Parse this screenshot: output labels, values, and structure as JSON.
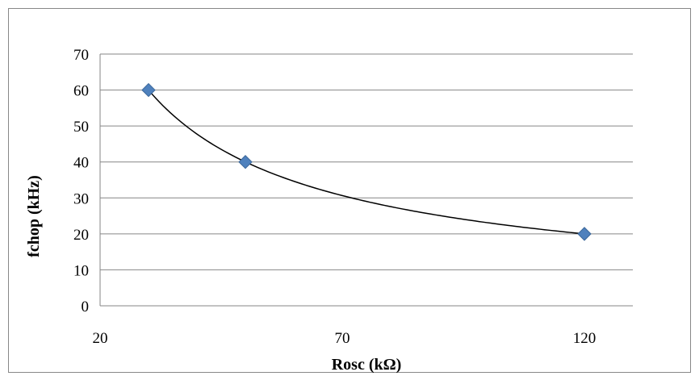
{
  "chart_data": {
    "type": "scatter",
    "title": "",
    "xlabel": "Rosc (kΩ)",
    "ylabel": "fchop (kHz)",
    "xlim": [
      20,
      130
    ],
    "ylim": [
      0,
      70
    ],
    "x_ticks": [
      "20",
      "70",
      "120"
    ],
    "y_ticks": [
      "0",
      "10",
      "20",
      "30",
      "40",
      "50",
      "60",
      "70"
    ],
    "grid": "horizontal",
    "legend": "none",
    "series": [
      {
        "x": [
          30,
          50,
          120
        ],
        "y": [
          60,
          40,
          20
        ],
        "marker": "diamond",
        "color": "#4f81bd"
      }
    ],
    "trendline": {
      "type": "power",
      "color": "#000000"
    }
  }
}
